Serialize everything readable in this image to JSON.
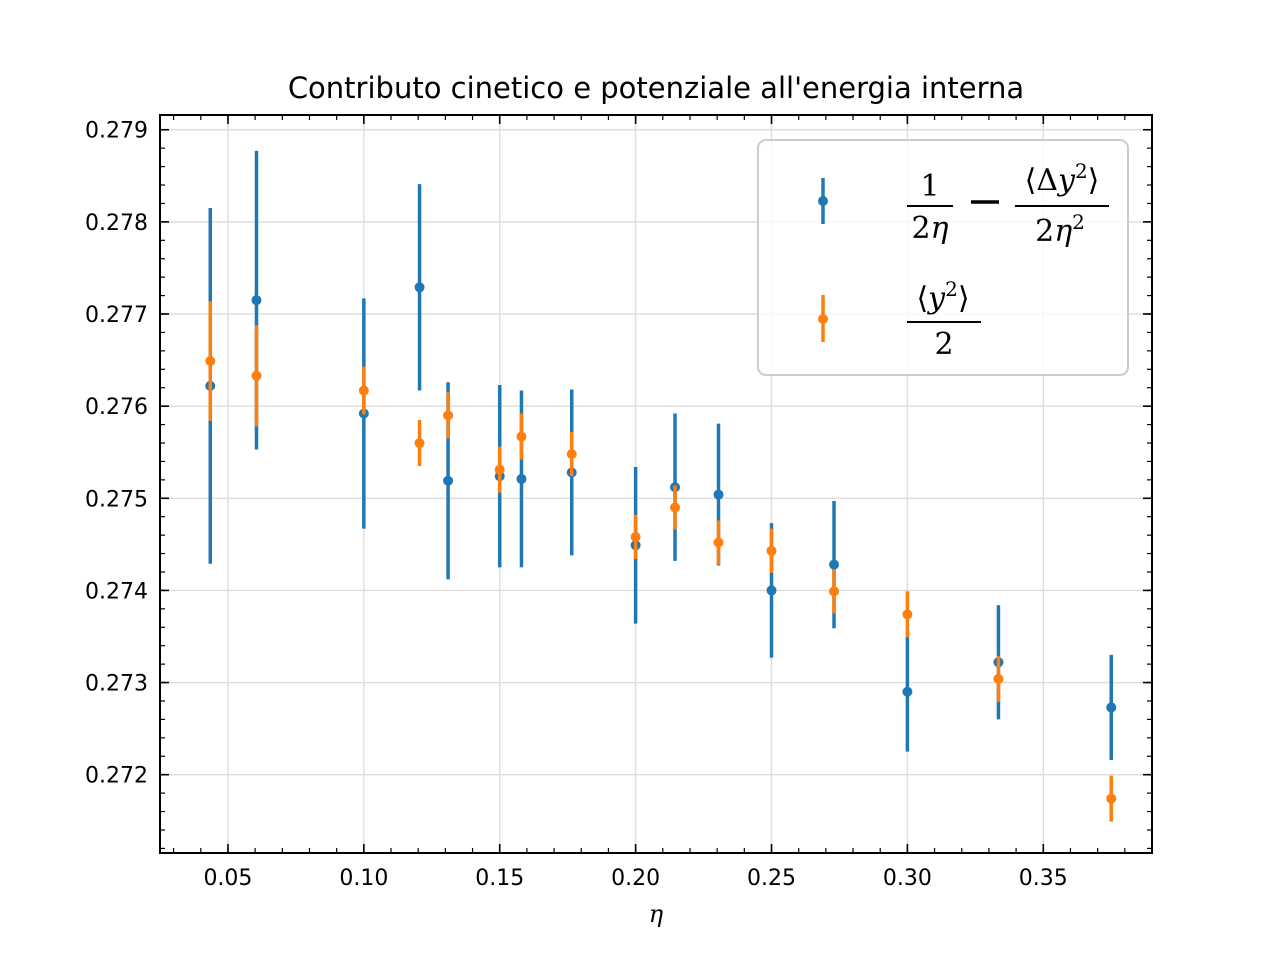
{
  "chart_data": {
    "type": "scatter",
    "title": "Contributo cinetico e potenziale all'energia interna",
    "xlabel": "η",
    "ylabel": "",
    "xlim": [
      0.025,
      0.39
    ],
    "ylim": [
      0.27115,
      0.27916
    ],
    "x_ticks": [
      0.05,
      0.1,
      0.15,
      0.2,
      0.25,
      0.3,
      0.35
    ],
    "x_tick_labels": [
      "0.05",
      "0.10",
      "0.15",
      "0.20",
      "0.25",
      "0.30",
      "0.35"
    ],
    "y_ticks": [
      0.272,
      0.273,
      0.274,
      0.275,
      0.276,
      0.277,
      0.278,
      0.279
    ],
    "y_tick_labels": [
      "0.272",
      "0.273",
      "0.274",
      "0.275",
      "0.276",
      "0.277",
      "0.278",
      "0.279"
    ],
    "grid": true,
    "legend_position": "top-right",
    "series": [
      {
        "name": "1/(2η) − ⟨Δy²⟩/(2η²)",
        "color": "#1f77b4",
        "points": [
          {
            "x": 0.0435,
            "y": 0.27622,
            "err": 0.00193
          },
          {
            "x": 0.0605,
            "y": 0.27715,
            "err": 0.00162
          },
          {
            "x": 0.1,
            "y": 0.27592,
            "err": 0.00125
          },
          {
            "x": 0.1205,
            "y": 0.27729,
            "err": 0.00112
          },
          {
            "x": 0.131,
            "y": 0.27519,
            "err": 0.00107
          },
          {
            "x": 0.15,
            "y": 0.27524,
            "err": 0.00099
          },
          {
            "x": 0.158,
            "y": 0.27521,
            "err": 0.00096
          },
          {
            "x": 0.1765,
            "y": 0.27528,
            "err": 0.0009
          },
          {
            "x": 0.2,
            "y": 0.27449,
            "err": 0.00085
          },
          {
            "x": 0.2145,
            "y": 0.27512,
            "err": 0.0008
          },
          {
            "x": 0.2305,
            "y": 0.27504,
            "err": 0.00077
          },
          {
            "x": 0.25,
            "y": 0.274,
            "err": 0.00073
          },
          {
            "x": 0.273,
            "y": 0.27428,
            "err": 0.00069
          },
          {
            "x": 0.3,
            "y": 0.2729,
            "err": 0.00065
          },
          {
            "x": 0.3335,
            "y": 0.27322,
            "err": 0.00062
          },
          {
            "x": 0.375,
            "y": 0.27273,
            "err": 0.00057
          }
        ]
      },
      {
        "name": "⟨y²⟩/2",
        "color": "#ff7f0e",
        "points": [
          {
            "x": 0.0435,
            "y": 0.27649,
            "err": 0.00065
          },
          {
            "x": 0.0605,
            "y": 0.27633,
            "err": 0.00055
          },
          {
            "x": 0.1,
            "y": 0.27617,
            "err": 0.00026
          },
          {
            "x": 0.1205,
            "y": 0.2756,
            "err": 0.00025
          },
          {
            "x": 0.131,
            "y": 0.2759,
            "err": 0.00025
          },
          {
            "x": 0.15,
            "y": 0.27531,
            "err": 0.00025
          },
          {
            "x": 0.158,
            "y": 0.27567,
            "err": 0.00025
          },
          {
            "x": 0.1765,
            "y": 0.27548,
            "err": 0.00024
          },
          {
            "x": 0.2,
            "y": 0.27458,
            "err": 0.00024
          },
          {
            "x": 0.2145,
            "y": 0.2749,
            "err": 0.00024
          },
          {
            "x": 0.2305,
            "y": 0.27452,
            "err": 0.00024
          },
          {
            "x": 0.25,
            "y": 0.27443,
            "err": 0.00024
          },
          {
            "x": 0.273,
            "y": 0.27399,
            "err": 0.00024
          },
          {
            "x": 0.3,
            "y": 0.27374,
            "err": 0.00025
          },
          {
            "x": 0.3335,
            "y": 0.27304,
            "err": 0.00025
          },
          {
            "x": 0.375,
            "y": 0.27174,
            "err": 0.00025
          }
        ]
      }
    ]
  }
}
